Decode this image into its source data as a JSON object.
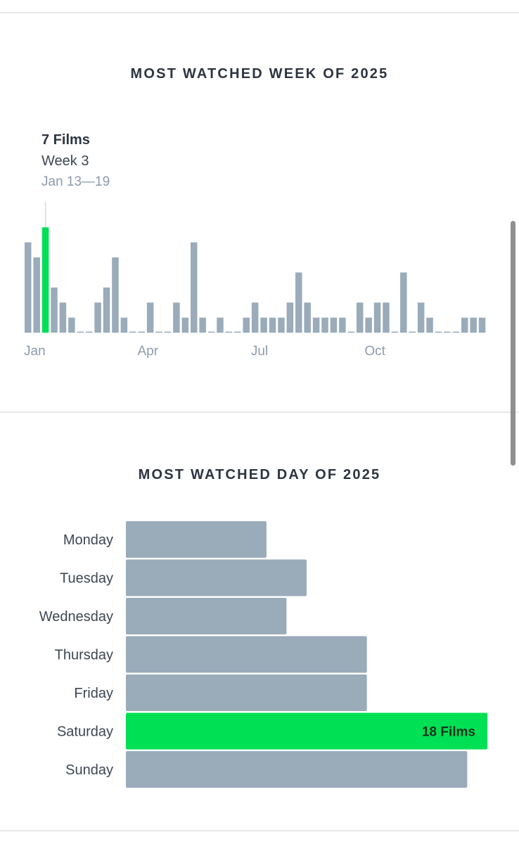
{
  "sections": {
    "week_title": "MOST WATCHED WEEK OF 2025",
    "day_title": "MOST WATCHED DAY OF 2025"
  },
  "tooltip": {
    "count": "7 Films",
    "week": "Week 3",
    "range": "Jan 13—19"
  },
  "colors": {
    "bar": "#9aabba",
    "highlight": "#00e054",
    "divider": "#e6e8eb",
    "title": "#2c3440",
    "muted": "#8b9bab"
  },
  "chart_data": [
    {
      "type": "bar",
      "orientation": "vertical",
      "title": "MOST WATCHED WEEK OF 2025",
      "x_tick_labels": [
        {
          "label": "Jan",
          "week": 1
        },
        {
          "label": "Apr",
          "week": 14
        },
        {
          "label": "Jul",
          "week": 27
        },
        {
          "label": "Oct",
          "week": 40
        }
      ],
      "weeks": [
        1,
        2,
        3,
        4,
        5,
        6,
        7,
        8,
        9,
        10,
        11,
        12,
        13,
        14,
        15,
        16,
        17,
        18,
        19,
        20,
        21,
        22,
        23,
        24,
        25,
        26,
        27,
        28,
        29,
        30,
        31,
        32,
        33,
        34,
        35,
        36,
        37,
        38,
        39,
        40,
        41,
        42,
        43,
        44,
        45,
        46,
        47,
        48,
        49,
        50,
        51,
        52,
        53
      ],
      "values": [
        6,
        5,
        7,
        3,
        2,
        1,
        0,
        0,
        2,
        3,
        5,
        1,
        0,
        0,
        2,
        0,
        0,
        2,
        1,
        6,
        1,
        0,
        1,
        0,
        0,
        1,
        2,
        1,
        1,
        1,
        2,
        4,
        2,
        1,
        1,
        1,
        1,
        0,
        2,
        1,
        2,
        2,
        0,
        4,
        0,
        2,
        1,
        0,
        0,
        0,
        1,
        1,
        1
      ],
      "highlight_index": 2,
      "ylim": [
        0,
        7
      ]
    },
    {
      "type": "bar",
      "orientation": "horizontal",
      "title": "MOST WATCHED DAY OF 2025",
      "categories": [
        "Monday",
        "Tuesday",
        "Wednesday",
        "Thursday",
        "Friday",
        "Saturday",
        "Sunday"
      ],
      "values": [
        7,
        9,
        8,
        12,
        12,
        18,
        17
      ],
      "highlight_index": 5,
      "highlight_label": "18 Films",
      "xlim": [
        0,
        18
      ]
    }
  ]
}
